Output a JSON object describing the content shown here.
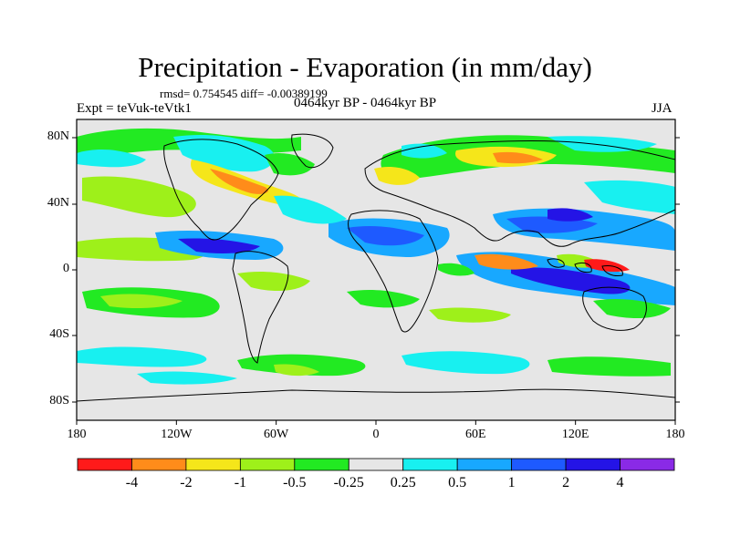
{
  "title": "Precipitation - Evaporation (in mm/day)",
  "stats_line": "rmsd= 0.754545 diff= -0.00389199",
  "experiment_label": "Expt = teVuk-teVtk1",
  "period_label": "0464kyr BP - 0464kyr BP",
  "season_label": "JJA",
  "y_ticks": [
    "80N",
    "40N",
    "0",
    "40S",
    "80S"
  ],
  "x_ticks": [
    "180",
    "120W",
    "60W",
    "0",
    "60E",
    "120E",
    "180"
  ],
  "colorbar": {
    "labels": [
      "-4",
      "-2",
      "-1",
      "-0.5",
      "-0.25",
      "0.25",
      "0.5",
      "1",
      "2",
      "4"
    ],
    "colors": [
      "#ff1a1a",
      "#ff8c1a",
      "#f5e61a",
      "#9ef01a",
      "#22ea22",
      "#e6e6e6",
      "#18f0f0",
      "#18a8ff",
      "#1e5aff",
      "#2414e6",
      "#8a2ae6"
    ]
  },
  "background_color": "#e6e6e6"
}
